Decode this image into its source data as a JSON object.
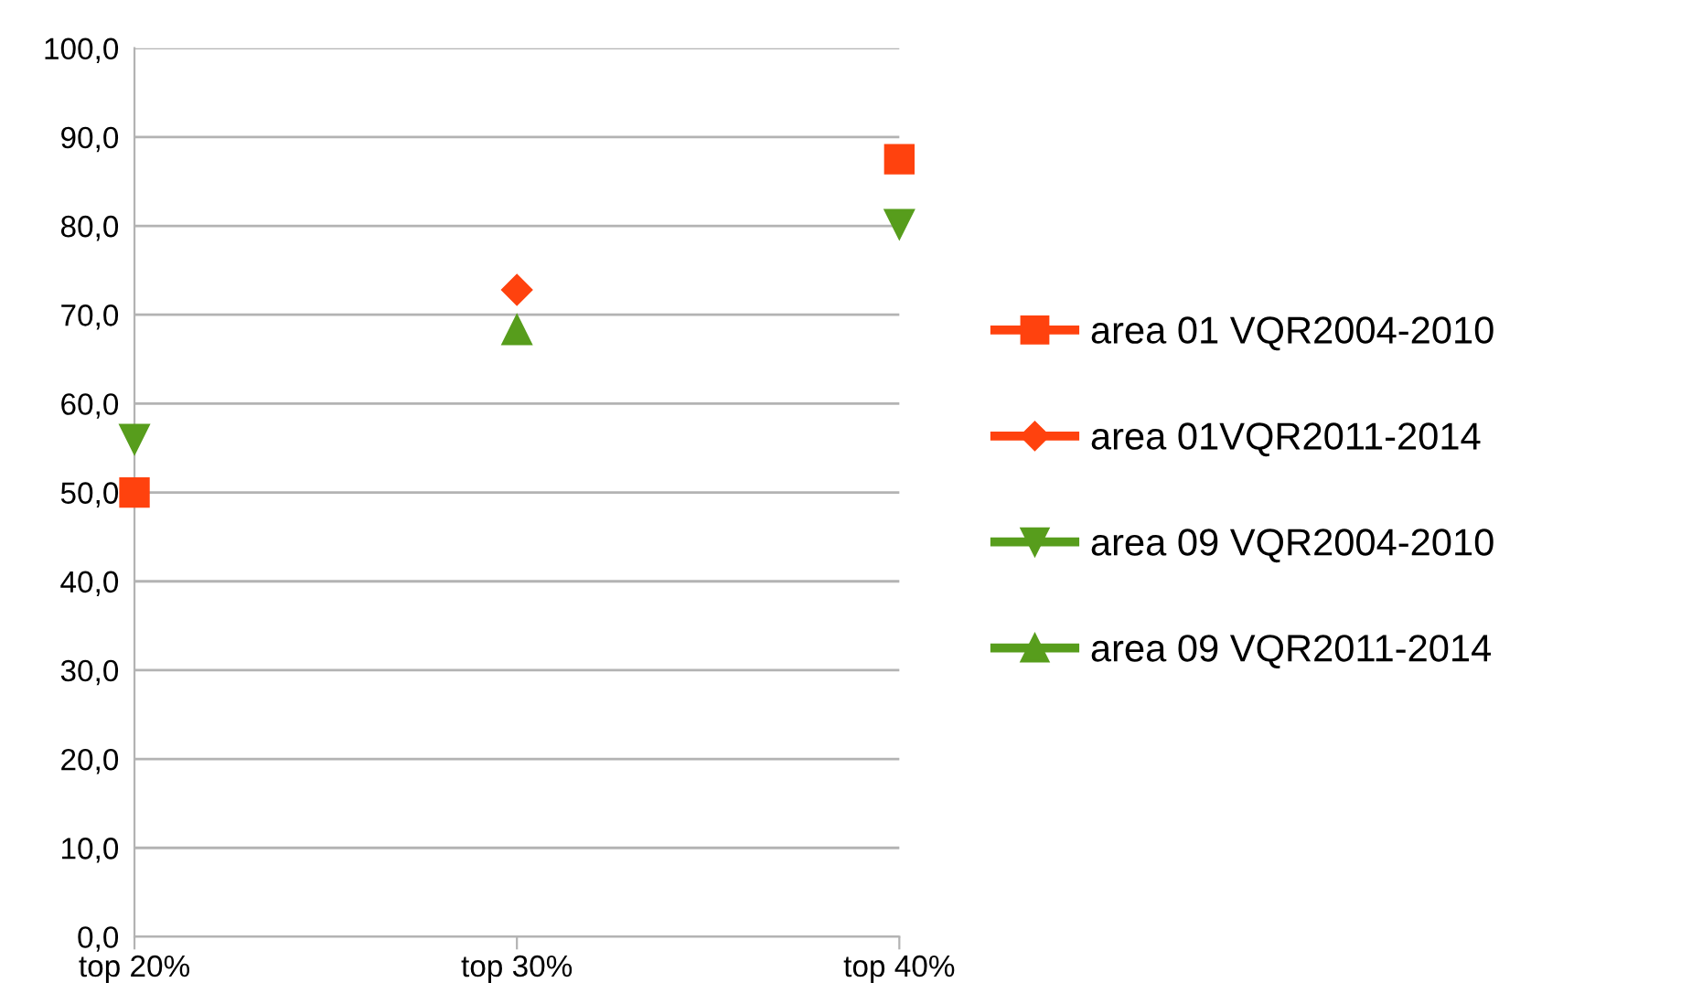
{
  "chart_data": {
    "type": "scatter",
    "categories": [
      "top 20%",
      "top 30%",
      "top 40%"
    ],
    "series": [
      {
        "name": "area 01 VQR2004-2010",
        "color": "#ff420e",
        "marker": "square",
        "values": [
          50.0,
          null,
          87.5
        ]
      },
      {
        "name": "area 01VQR2011-2014",
        "color": "#ff420e",
        "marker": "diamond",
        "values": [
          null,
          72.8,
          null
        ]
      },
      {
        "name": "area 09 VQR2004-2010",
        "color": "#579d1c",
        "marker": "triangle-down",
        "values": [
          56.0,
          null,
          80.2
        ]
      },
      {
        "name": "area 09 VQR2011-2014",
        "color": "#579d1c",
        "marker": "triangle",
        "values": [
          null,
          68.3,
          null
        ]
      }
    ],
    "ylim": [
      0,
      100
    ],
    "yticks": [
      {
        "value": 0,
        "label": "0,0"
      },
      {
        "value": 10,
        "label": "10,0"
      },
      {
        "value": 20,
        "label": "20,0"
      },
      {
        "value": 30,
        "label": "30,0"
      },
      {
        "value": 40,
        "label": "40,0"
      },
      {
        "value": 50,
        "label": "50,0"
      },
      {
        "value": 60,
        "label": "60,0"
      },
      {
        "value": 70,
        "label": "70,0"
      },
      {
        "value": 80,
        "label": "80,0"
      },
      {
        "value": 90,
        "label": "90,0"
      },
      {
        "value": 100,
        "label": "100,0"
      }
    ],
    "grid": "y",
    "legend": "right"
  }
}
